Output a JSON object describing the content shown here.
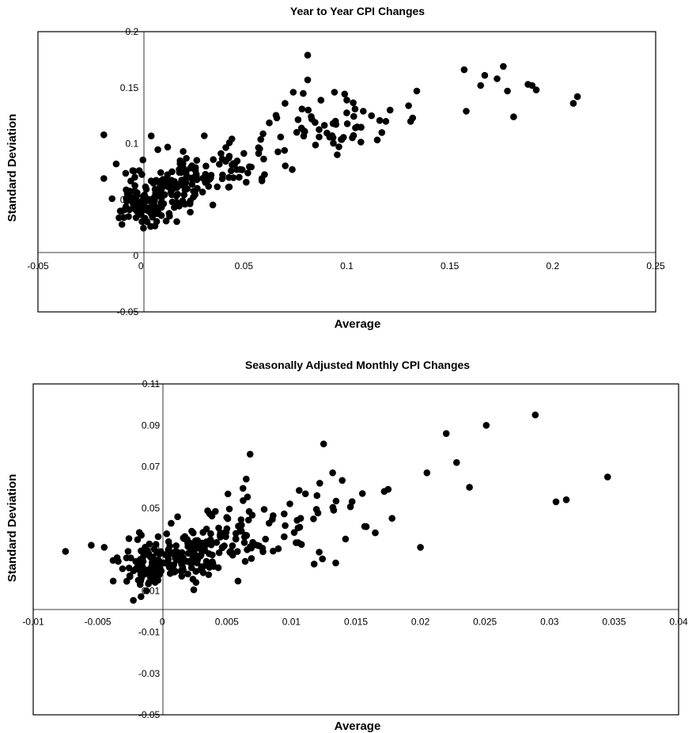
{
  "chart_data": [
    {
      "type": "scatter",
      "title": "Year to Year CPI Changes",
      "xlabel": "Average",
      "ylabel": "Standard Deviation",
      "xlim": [
        -0.05,
        0.25
      ],
      "ylim": [
        -0.05,
        0.2
      ],
      "x_ticks": [
        "-0.05",
        "0",
        "0.05",
        "0.1",
        "0.15",
        "0.2",
        "0.25"
      ],
      "y_ticks": [
        "0.2",
        "0.15",
        "0.1",
        "0",
        "-0.05"
      ],
      "y_ticks_partially_hidden": [
        "0.05"
      ],
      "marker_color": "#000000",
      "grid": false,
      "legend": "none",
      "clusters": [
        {
          "center": [
            0.002,
            0.045
          ],
          "spread": [
            0.006,
            0.009
          ],
          "count": 90
        },
        {
          "center": [
            0.016,
            0.062
          ],
          "spread": [
            0.009,
            0.01
          ],
          "count": 80
        },
        {
          "center": [
            0.033,
            0.075
          ],
          "spread": [
            0.01,
            0.01
          ],
          "count": 55
        },
        {
          "center": [
            0.06,
            0.095
          ],
          "spread": [
            0.011,
            0.014
          ],
          "count": 20
        },
        {
          "center": [
            0.092,
            0.115
          ],
          "spread": [
            0.012,
            0.012
          ],
          "count": 45
        }
      ],
      "points": [
        [
          -0.018,
          0.108
        ],
        [
          -0.018,
          0.069
        ],
        [
          -0.014,
          0.051
        ],
        [
          -0.012,
          0.082
        ],
        [
          -0.01,
          0.04
        ],
        [
          -0.006,
          0.035
        ],
        [
          -0.004,
          0.076
        ],
        [
          0.005,
          0.107
        ],
        [
          0.013,
          0.097
        ],
        [
          0.024,
          0.049
        ],
        [
          0.024,
          0.039
        ],
        [
          0.07,
          0.136
        ],
        [
          0.074,
          0.146
        ],
        [
          0.081,
          0.179
        ],
        [
          0.081,
          0.157
        ],
        [
          0.066,
          0.123
        ],
        [
          0.078,
          0.114
        ],
        [
          0.083,
          0.122
        ],
        [
          0.094,
          0.146
        ],
        [
          0.1,
          0.139
        ],
        [
          0.104,
          0.131
        ],
        [
          0.108,
          0.129
        ],
        [
          0.112,
          0.125
        ],
        [
          0.117,
          0.11
        ],
        [
          0.121,
          0.13
        ],
        [
          0.13,
          0.134
        ],
        [
          0.131,
          0.12
        ],
        [
          0.132,
          0.123
        ],
        [
          0.134,
          0.147
        ],
        [
          0.157,
          0.166
        ],
        [
          0.158,
          0.129
        ],
        [
          0.165,
          0.152
        ],
        [
          0.167,
          0.161
        ],
        [
          0.173,
          0.158
        ],
        [
          0.176,
          0.169
        ],
        [
          0.178,
          0.147
        ],
        [
          0.181,
          0.124
        ],
        [
          0.188,
          0.153
        ],
        [
          0.19,
          0.152
        ],
        [
          0.192,
          0.148
        ],
        [
          0.21,
          0.136
        ],
        [
          0.212,
          0.142
        ]
      ]
    },
    {
      "type": "scatter",
      "title": "Seasonally Adjusted Monthly CPI Changes",
      "xlabel": "Average",
      "ylabel": "Standard Deviation",
      "xlim": [
        -0.01,
        0.04
      ],
      "ylim": [
        -0.05,
        0.11
      ],
      "x_ticks": [
        "-0.01",
        "-0.005",
        "0",
        "0.005",
        "0.01",
        "0.015",
        "0.02",
        "0.025",
        "0.03",
        "0.035",
        "0.04"
      ],
      "y_ticks": [
        "0.11",
        "0.09",
        "0.07",
        "0.05",
        "-0.01",
        "-0.03",
        "-0.05"
      ],
      "y_ticks_partially_hidden": [
        "0.03",
        "0.01"
      ],
      "marker_color": "#000000",
      "grid": false,
      "legend": "none",
      "clusters": [
        {
          "center": [
            -0.0015,
            0.022
          ],
          "spread": [
            0.0016,
            0.006
          ],
          "count": 80
        },
        {
          "center": [
            0.0015,
            0.027
          ],
          "spread": [
            0.0017,
            0.007
          ],
          "count": 90
        },
        {
          "center": [
            0.0045,
            0.035
          ],
          "spread": [
            0.0018,
            0.008
          ],
          "count": 65
        },
        {
          "center": [
            0.0085,
            0.04
          ],
          "spread": [
            0.0022,
            0.009
          ],
          "count": 30
        },
        {
          "center": [
            0.013,
            0.045
          ],
          "spread": [
            0.0025,
            0.009
          ],
          "count": 15
        }
      ],
      "points": [
        [
          -0.0075,
          0.029
        ],
        [
          -0.0055,
          0.032
        ],
        [
          -0.0045,
          0.031
        ],
        [
          -0.0035,
          0.026
        ],
        [
          0.0065,
          0.064
        ],
        [
          0.0068,
          0.076
        ],
        [
          0.0125,
          0.081
        ],
        [
          0.0132,
          0.067
        ],
        [
          0.0122,
          0.062
        ],
        [
          0.0142,
          0.035
        ],
        [
          0.0155,
          0.057
        ],
        [
          0.0158,
          0.041
        ],
        [
          0.0165,
          0.038
        ],
        [
          0.0172,
          0.058
        ],
        [
          0.0175,
          0.059
        ],
        [
          0.0178,
          0.045
        ],
        [
          0.02,
          0.031
        ],
        [
          0.0205,
          0.067
        ],
        [
          0.022,
          0.086
        ],
        [
          0.0228,
          0.072
        ],
        [
          0.0238,
          0.06
        ],
        [
          0.0251,
          0.09
        ],
        [
          0.0289,
          0.095
        ],
        [
          0.0305,
          0.053
        ],
        [
          0.0313,
          0.054
        ],
        [
          0.0345,
          0.065
        ]
      ]
    }
  ]
}
